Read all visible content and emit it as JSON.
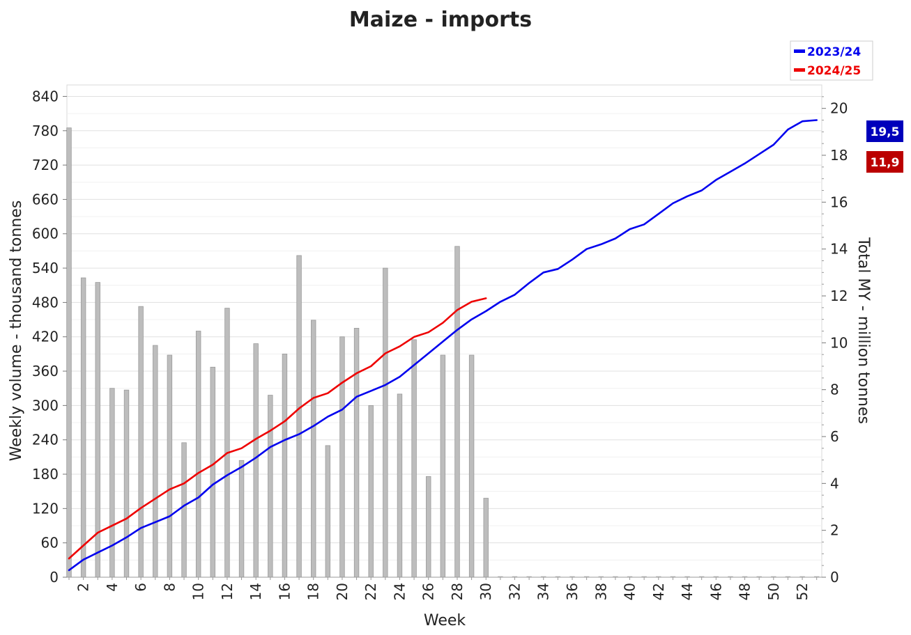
{
  "colors": {
    "series_2023": "#0000ee",
    "series_2024": "#ee0000",
    "bars": "#bdbdbd",
    "bar_edge": "#9a9a9a",
    "grid": "#e0e0e0",
    "badge_2023": "#0000bb",
    "badge_2024": "#bb0000"
  },
  "chart_data": {
    "type": "bar+line",
    "title": "Maize - imports",
    "xlabel": "Week",
    "ylabel_left": "Weekly volume - thousand tonnes",
    "ylabel_right": "Total MY - million tonnes",
    "x_ticks": [
      "2",
      "4",
      "6",
      "8",
      "10",
      "12",
      "14",
      "16",
      "18",
      "20",
      "22",
      "24",
      "26",
      "28",
      "30",
      "32",
      "34",
      "36",
      "38",
      "40",
      "42",
      "44",
      "46",
      "48",
      "50",
      "52"
    ],
    "y_left_ticks": [
      "0",
      "60",
      "120",
      "180",
      "240",
      "300",
      "360",
      "420",
      "480",
      "540",
      "600",
      "660",
      "720",
      "780",
      "840"
    ],
    "y_right_ticks": [
      "0",
      "2",
      "4",
      "6",
      "8",
      "10",
      "12",
      "14",
      "16",
      "18",
      "20"
    ],
    "ylim_left": [
      0,
      860
    ],
    "ylim_right": [
      0,
      21
    ],
    "weeks": [
      1,
      2,
      3,
      4,
      5,
      6,
      7,
      8,
      9,
      10,
      11,
      12,
      13,
      14,
      15,
      16,
      17,
      18,
      19,
      20,
      21,
      22,
      23,
      24,
      25,
      26,
      27,
      28,
      29,
      30,
      31,
      32,
      33,
      34,
      35,
      36,
      37,
      38,
      39,
      40,
      41,
      42,
      43,
      44,
      45,
      46,
      47,
      48,
      49,
      50,
      51,
      52,
      53
    ],
    "bars": {
      "name": "Weekly volume 2024/25",
      "axis": "left",
      "values": [
        785,
        523,
        515,
        330,
        327,
        473,
        405,
        388,
        235,
        430,
        367,
        470,
        204,
        408,
        318,
        390,
        562,
        449,
        230,
        420,
        435,
        300,
        540,
        320,
        415,
        176,
        388,
        578,
        388,
        138,
        0,
        0,
        0,
        0,
        0,
        0,
        0,
        0,
        0,
        0,
        0,
        0,
        0,
        0,
        0,
        0,
        0,
        0,
        0,
        0,
        0,
        0,
        0
      ]
    },
    "series": [
      {
        "name": "2023/24",
        "axis": "right",
        "end_label": "19,5",
        "values": [
          0.3,
          0.75,
          1.05,
          1.35,
          1.7,
          2.1,
          2.35,
          2.6,
          3.05,
          3.4,
          3.95,
          4.35,
          4.7,
          5.1,
          5.55,
          5.85,
          6.1,
          6.45,
          6.85,
          7.15,
          7.7,
          7.95,
          8.2,
          8.55,
          9.05,
          9.55,
          10.05,
          10.55,
          11.0,
          11.35,
          11.75,
          12.05,
          12.55,
          13.0,
          13.15,
          13.55,
          14.0,
          14.2,
          14.45,
          14.85,
          15.05,
          15.5,
          15.95,
          16.25,
          16.5,
          16.95,
          17.3,
          17.65,
          18.05,
          18.45,
          19.1,
          19.45,
          19.5
        ]
      },
      {
        "name": "2024/25",
        "axis": "right",
        "end_label": "11,9",
        "values": [
          0.8,
          1.35,
          1.9,
          2.2,
          2.5,
          2.95,
          3.35,
          3.75,
          4.0,
          4.45,
          4.8,
          5.3,
          5.5,
          5.9,
          6.25,
          6.65,
          7.2,
          7.65,
          7.85,
          8.3,
          8.7,
          9.0,
          9.55,
          9.85,
          10.25,
          10.45,
          10.85,
          11.4,
          11.75,
          11.9
        ]
      }
    ],
    "legend_position": "top-right",
    "grid": true
  }
}
